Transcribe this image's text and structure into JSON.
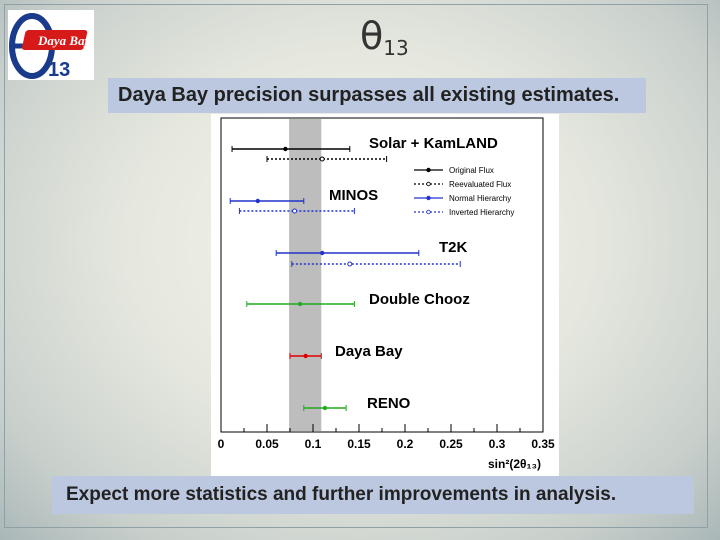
{
  "slide": {
    "title_main": "θ",
    "title_sub": "13",
    "banner_top": "Daya Bay precision surpasses all existing estimates.",
    "banner_bottom": "Expect more statistics and further improvements in analysis.",
    "logo": {
      "text_main": "Daya Bay",
      "text_sub": "13"
    }
  },
  "chart_data": {
    "type": "scatter",
    "xlabel": "sin²(2θ₁₃)",
    "xlim": [
      0,
      0.35
    ],
    "xticks": [
      "0",
      "0.05",
      "0.1",
      "0.15",
      "0.2",
      "0.25",
      "0.3",
      "0.35"
    ],
    "shaded_band": [
      0.074,
      0.109
    ],
    "legend": {
      "placement": "top-right",
      "entries": [
        "Original Flux",
        "Reevaluated Flux",
        "Normal Hierarchy",
        "Inverted Hierarchy"
      ]
    },
    "experiments": [
      {
        "label": "Solar + KamLAND",
        "measurements": [
          {
            "variant": "Original Flux",
            "center": 0.07,
            "low": 0.012,
            "high": 0.14,
            "color": "#000000",
            "style": "solid"
          },
          {
            "variant": "Reevaluated Flux",
            "center": 0.11,
            "low": 0.05,
            "high": 0.18,
            "color": "#000000",
            "style": "dashed"
          }
        ]
      },
      {
        "label": "MINOS",
        "measurements": [
          {
            "variant": "Normal Hierarchy",
            "center": 0.04,
            "low": 0.01,
            "high": 0.09,
            "color": "#2233cc",
            "style": "solid"
          },
          {
            "variant": "Inverted Hierarchy",
            "center": 0.08,
            "low": 0.02,
            "high": 0.145,
            "color": "#2233cc",
            "style": "dashed"
          }
        ]
      },
      {
        "label": "T2K",
        "measurements": [
          {
            "variant": "Normal Hierarchy",
            "center": 0.11,
            "low": 0.06,
            "high": 0.215,
            "color": "#2233cc",
            "style": "solid"
          },
          {
            "variant": "Inverted Hierarchy",
            "center": 0.14,
            "low": 0.077,
            "high": 0.26,
            "color": "#2233cc",
            "style": "dashed"
          }
        ]
      },
      {
        "label": "Double Chooz",
        "measurements": [
          {
            "variant": "",
            "center": 0.086,
            "low": 0.028,
            "high": 0.145,
            "color": "#22aa22",
            "style": "solid"
          }
        ]
      },
      {
        "label": "Daya Bay",
        "measurements": [
          {
            "variant": "",
            "center": 0.092,
            "low": 0.075,
            "high": 0.109,
            "color": "#dd0000",
            "style": "solid"
          }
        ]
      },
      {
        "label": "RENO",
        "measurements": [
          {
            "variant": "",
            "center": 0.113,
            "low": 0.09,
            "high": 0.136,
            "color": "#22aa22",
            "style": "solid"
          }
        ]
      }
    ],
    "colors": {
      "band": "#bdbdbd",
      "normal": "#2233cc",
      "dayabay": "#dd0000",
      "chooz": "#22aa22"
    }
  }
}
